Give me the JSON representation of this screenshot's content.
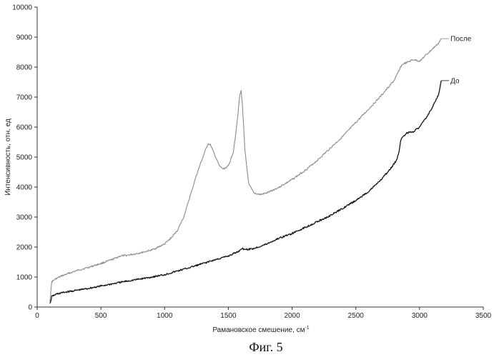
{
  "chart_data": {
    "type": "line",
    "title": "",
    "xlabel": "Рамановское смешение, см",
    "xlabel_superscript": "-1",
    "ylabel": "Интенсивность, отн. ед",
    "xlim": [
      0,
      3500
    ],
    "ylim": [
      0,
      10000
    ],
    "xticks": [
      0,
      500,
      1000,
      1500,
      2000,
      2500,
      3000,
      3500
    ],
    "yticks": [
      0,
      1000,
      2000,
      3000,
      4000,
      5000,
      6000,
      7000,
      8000,
      9000,
      10000
    ],
    "grid": false,
    "legend": "inline-right",
    "series": [
      {
        "name": "После",
        "color": "#8a8a8a",
        "x": [
          100,
          115,
          150,
          200,
          300,
          400,
          500,
          600,
          650,
          700,
          800,
          900,
          1000,
          1050,
          1100,
          1150,
          1200,
          1250,
          1300,
          1340,
          1360,
          1400,
          1430,
          1460,
          1500,
          1540,
          1570,
          1590,
          1600,
          1610,
          1630,
          1660,
          1700,
          1750,
          1800,
          1900,
          2000,
          2100,
          2200,
          2300,
          2400,
          2500,
          2600,
          2700,
          2800,
          2830,
          2850,
          2870,
          2900,
          2950,
          3000,
          3050,
          3100,
          3150,
          3170
        ],
        "y": [
          200,
          850,
          950,
          1050,
          1200,
          1320,
          1450,
          1600,
          1700,
          1720,
          1800,
          1900,
          2100,
          2300,
          2550,
          3000,
          3700,
          4400,
          5000,
          5450,
          5400,
          5000,
          4700,
          4600,
          4700,
          5200,
          6200,
          7100,
          7200,
          6800,
          5200,
          4100,
          3800,
          3750,
          3800,
          4000,
          4250,
          4550,
          4900,
          5300,
          5700,
          6150,
          6600,
          7050,
          7550,
          7800,
          8000,
          8100,
          8150,
          8250,
          8200,
          8400,
          8600,
          8800,
          8950
        ]
      },
      {
        "name": "До",
        "color": "#111111",
        "x": [
          100,
          115,
          150,
          200,
          300,
          400,
          500,
          600,
          700,
          800,
          900,
          1000,
          1100,
          1200,
          1300,
          1400,
          1500,
          1550,
          1580,
          1600,
          1650,
          1700,
          1800,
          1900,
          2000,
          2100,
          2200,
          2300,
          2400,
          2500,
          2600,
          2700,
          2780,
          2820,
          2840,
          2850,
          2860,
          2900,
          2950,
          3000,
          3050,
          3100,
          3150,
          3170
        ],
        "y": [
          100,
          350,
          430,
          480,
          550,
          620,
          700,
          780,
          860,
          930,
          1000,
          1080,
          1200,
          1320,
          1450,
          1580,
          1700,
          1800,
          1850,
          1950,
          1920,
          1950,
          2100,
          2300,
          2450,
          2650,
          2850,
          3050,
          3300,
          3550,
          3850,
          4250,
          4650,
          4900,
          5200,
          5500,
          5650,
          5800,
          5850,
          6000,
          6300,
          6650,
          7100,
          7550
        ]
      }
    ]
  },
  "caption": "Фиг. 5"
}
